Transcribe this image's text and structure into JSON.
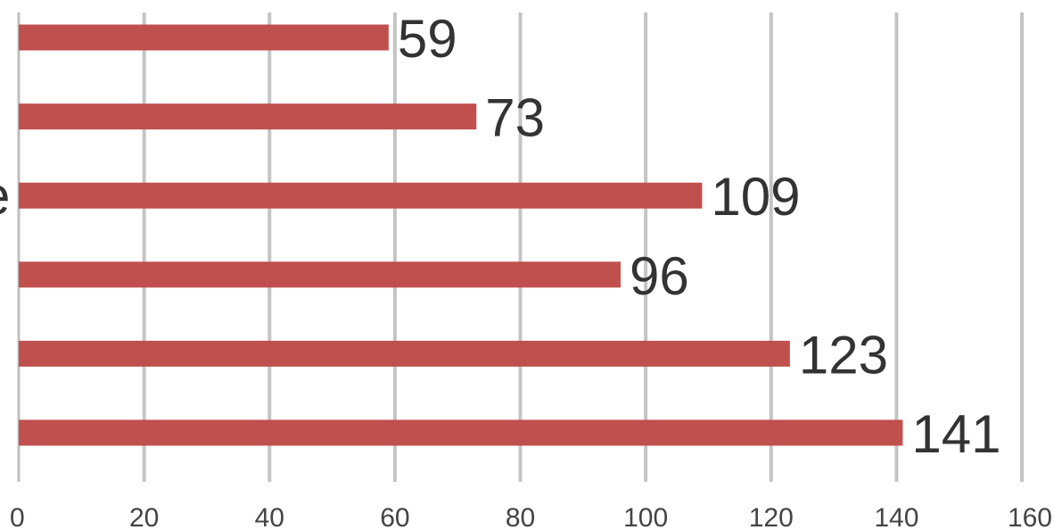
{
  "chart_data": {
    "type": "bar",
    "orientation": "horizontal",
    "values": [
      59,
      73,
      109,
      96,
      123,
      141
    ],
    "data_labels": [
      "59",
      "73",
      "109",
      "96",
      "123",
      "141"
    ],
    "xlim": [
      0,
      160
    ],
    "x_ticks": [
      0,
      20,
      40,
      60,
      80,
      100,
      120,
      140,
      160
    ],
    "x_tick_labels": [
      "0",
      "20",
      "40",
      "60",
      "80",
      "100",
      "120",
      "140",
      "160"
    ],
    "partial_category_label": "e",
    "grid": true,
    "bar_color": "#c0504d"
  }
}
